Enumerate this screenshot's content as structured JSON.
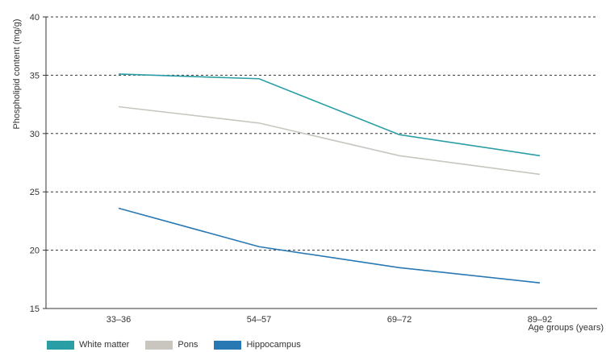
{
  "chart_data": {
    "type": "line",
    "title": "",
    "xlabel": "Age groups (years)",
    "ylabel": "Phospholipid content (mg/g)",
    "categories": [
      "33–36",
      "54–57",
      "69–72",
      "89–92"
    ],
    "ylim": [
      15,
      40
    ],
    "yticks": [
      15,
      20,
      25,
      30,
      35,
      40
    ],
    "grid": "dashed horizontal",
    "legend_position": "bottom-left",
    "series": [
      {
        "name": "White matter",
        "color": "#2a9ea5",
        "values": [
          35.1,
          34.7,
          29.9,
          28.1
        ]
      },
      {
        "name": "Pons",
        "color": "#c9c6c0",
        "values": [
          32.3,
          30.9,
          28.1,
          26.5
        ]
      },
      {
        "name": "Hippocampus",
        "color": "#2878b4",
        "values": [
          23.6,
          20.3,
          18.5,
          17.2
        ]
      }
    ]
  }
}
